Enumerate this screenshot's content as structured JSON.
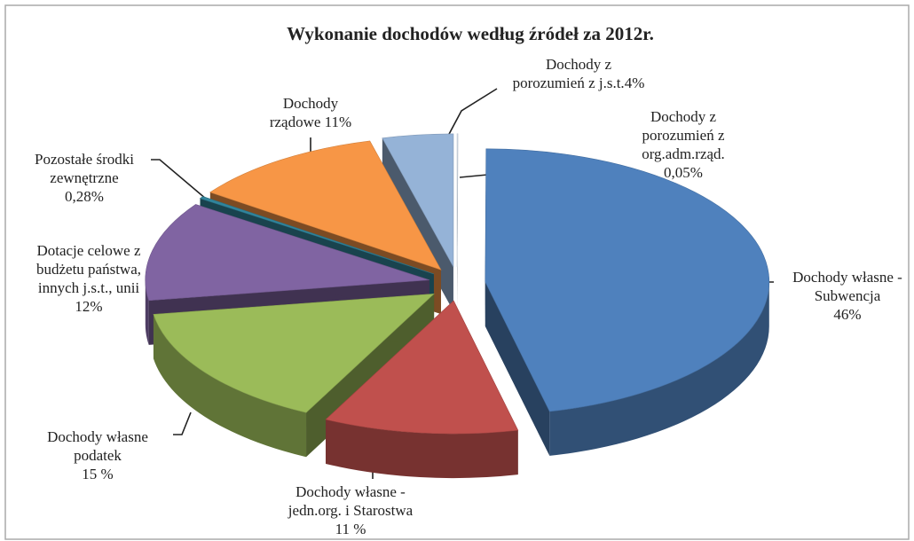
{
  "chart_data": {
    "type": "pie3d",
    "title": "Wykonanie  dochodów według źródeł za 2012r.",
    "categories": [
      [
        "Dochody z",
        "porozumień z",
        "org.adm.rząd."
      ],
      [
        "Dochody własne -",
        "Subwencja"
      ],
      [
        "Dochody własne -",
        "jedn.org. i Starostwa"
      ],
      [
        "Dochody własne",
        "podatek"
      ],
      [
        "Dotacje celowe z",
        "budżetu państwa,",
        "innych j.s.t., unii"
      ],
      [
        "Pozostałe środki",
        "zewnętrzne"
      ],
      [
        "Dochody",
        "rządowe"
      ],
      [
        "Dochody z",
        "porozumień z j.s.t."
      ]
    ],
    "values": [
      0.05,
      46,
      11,
      15,
      12,
      0.28,
      11,
      4
    ],
    "value_labels": [
      "0,05%",
      "46%",
      "11 %",
      "15 %",
      "12%",
      "0,28%",
      "11%",
      "4%"
    ],
    "colors": [
      "#dbe5f1",
      "#4f81bd",
      "#c0504d",
      "#9bbb59",
      "#8064a2",
      "#31859c",
      "#f79646",
      "#95b3d7"
    ]
  }
}
